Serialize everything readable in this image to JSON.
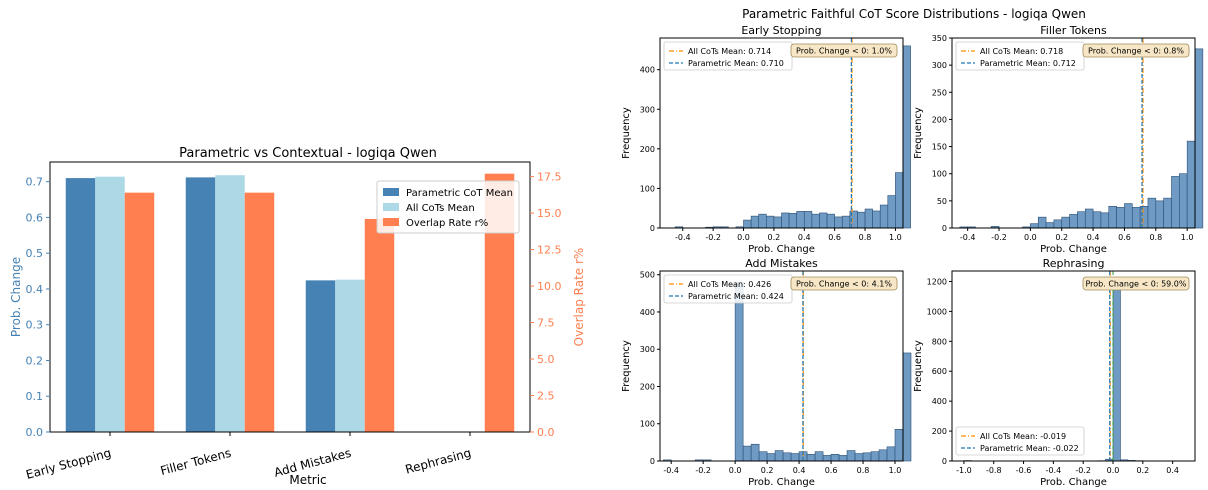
{
  "colors": {
    "steel": "#4682b4",
    "light": "#add8e6",
    "coral": "#ff7f50",
    "hist": "#6e9ac4",
    "hist_edge": "#2b4f74",
    "mean_all": "#ff8c00",
    "mean_param": "#1f77b4",
    "zero_line": "#2ca02c",
    "annot_bg": "#f7e7c6"
  },
  "chart_data": [
    {
      "type": "bar",
      "title": "Parametric vs Contextual - logiqa Qwen",
      "xlabel": "Metric",
      "ylabel": "Prob. Change",
      "ylabel_right": "Overlap Rate r%",
      "categories": [
        "Early Stopping",
        "Filler Tokens",
        "Add Mistakes",
        "Rephrasing"
      ],
      "ylim": [
        0,
        0.755
      ],
      "ylim_right": [
        0,
        18.5
      ],
      "yticks": [
        "0.0",
        "0.1",
        "0.2",
        "0.3",
        "0.4",
        "0.5",
        "0.6",
        "0.7"
      ],
      "yticks_right": [
        "0.0",
        "2.5",
        "5.0",
        "7.5",
        "10.0",
        "12.5",
        "15.0",
        "17.5"
      ],
      "legend": "upper right",
      "series": [
        {
          "name": "Parametric CoT Mean",
          "axis": "left",
          "values": [
            0.71,
            0.712,
            0.424,
            -0.022
          ]
        },
        {
          "name": "All CoTs Mean",
          "axis": "left",
          "values": [
            0.714,
            0.718,
            0.426,
            -0.019
          ]
        },
        {
          "name": "Overlap Rate r%",
          "axis": "right",
          "values": [
            16.4,
            16.4,
            14.6,
            17.7
          ]
        }
      ]
    },
    {
      "type": "histogram",
      "suptitle": "Parametric Faithful CoT Score Distributions - logiqa Qwen",
      "panels": [
        {
          "title": "Early Stopping",
          "xlabel": "Prob. Change",
          "ylabel": "Frequency",
          "xlim": [
            -0.55,
            1.05
          ],
          "ylim": [
            0,
            480
          ],
          "xticks": [
            "-0.4",
            "-0.2",
            "0.0",
            "0.2",
            "0.4",
            "0.6",
            "0.8",
            "1.0"
          ],
          "yticks": [
            "0",
            "100",
            "200",
            "300",
            "400"
          ],
          "bin_start": -0.5,
          "bin_width": 0.05,
          "counts": [
            0,
            3,
            0,
            0,
            0,
            2,
            3,
            3,
            0,
            3,
            20,
            30,
            35,
            30,
            28,
            38,
            37,
            42,
            42,
            35,
            38,
            35,
            28,
            30,
            43,
            40,
            48,
            43,
            58,
            82,
            140,
            460
          ],
          "mean_all": 0.714,
          "mean_param": 0.71,
          "legend_all": "All CoTs Mean: 0.714",
          "legend_param": "Parametric Mean: 0.710",
          "annotation": "Prob. Change < 0: 1.0%",
          "legend_pos": "top-left"
        },
        {
          "title": "Filler Tokens",
          "xlabel": "Prob. Change",
          "ylabel": "Frequency",
          "xlim": [
            -0.5,
            1.05
          ],
          "ylim": [
            0,
            350
          ],
          "xticks": [
            "-0.4",
            "-0.2",
            "0.0",
            "0.2",
            "0.4",
            "0.6",
            "0.8",
            "1.0"
          ],
          "yticks": [
            "0",
            "50",
            "100",
            "150",
            "200",
            "250",
            "300",
            "350"
          ],
          "bin_start": -0.45,
          "bin_width": 0.05,
          "counts": [
            2,
            2,
            0,
            0,
            3,
            0,
            0,
            0,
            2,
            8,
            20,
            10,
            15,
            20,
            25,
            30,
            35,
            30,
            28,
            40,
            38,
            45,
            38,
            40,
            55,
            50,
            55,
            95,
            100,
            160,
            330
          ],
          "mean_all": 0.718,
          "mean_param": 0.712,
          "legend_all": "All CoTs Mean: 0.718",
          "legend_param": "Parametric Mean: 0.712",
          "annotation": "Prob. Change < 0: 0.8%",
          "legend_pos": "top-left"
        },
        {
          "title": "Add Mistakes",
          "xlabel": "Prob. Change",
          "ylabel": "Frequency",
          "xlim": [
            -0.47,
            1.05
          ],
          "ylim": [
            0,
            510
          ],
          "xticks": [
            "-0.4",
            "-0.2",
            "0.0",
            "0.2",
            "0.4",
            "0.6",
            "0.8",
            "1.0"
          ],
          "yticks": [
            "0",
            "100",
            "200",
            "300",
            "400",
            "500"
          ],
          "bin_start": -0.45,
          "bin_width": 0.05,
          "counts": [
            3,
            0,
            0,
            0,
            3,
            3,
            0,
            0,
            0,
            480,
            40,
            45,
            25,
            20,
            28,
            22,
            20,
            25,
            18,
            25,
            15,
            18,
            15,
            28,
            20,
            22,
            25,
            30,
            38,
            85,
            290
          ],
          "mean_all": 0.426,
          "mean_param": 0.424,
          "legend_all": "All CoTs Mean: 0.426",
          "legend_param": "Parametric Mean: 0.424",
          "annotation": "Prob. Change < 0: 4.1%",
          "legend_pos": "top-left"
        },
        {
          "title": "Rephrasing",
          "xlabel": "Prob. Change",
          "ylabel": "Frequency",
          "xlim": [
            -1.08,
            0.55
          ],
          "ylim": [
            0,
            1270
          ],
          "xticks": [
            "-1.0",
            "-0.8",
            "-0.6",
            "-0.4",
            "-0.2",
            "0.0",
            "0.2",
            "0.4"
          ],
          "yticks": [
            "0",
            "200",
            "400",
            "600",
            "800",
            "1000",
            "1200"
          ],
          "bin_start": -1.0,
          "bin_width": 0.05,
          "counts": [
            3,
            0,
            0,
            0,
            0,
            0,
            0,
            0,
            0,
            0,
            0,
            0,
            0,
            0,
            0,
            0,
            0,
            0,
            2,
            12,
            1210,
            8,
            4,
            2
          ],
          "mean_all": -0.019,
          "mean_param": -0.022,
          "legend_all": "All CoTs Mean: -0.019",
          "legend_param": "Parametric Mean: -0.022",
          "annotation": "Prob. Change < 0: 59.0%",
          "legend_pos": "bottom-left"
        }
      ]
    }
  ]
}
